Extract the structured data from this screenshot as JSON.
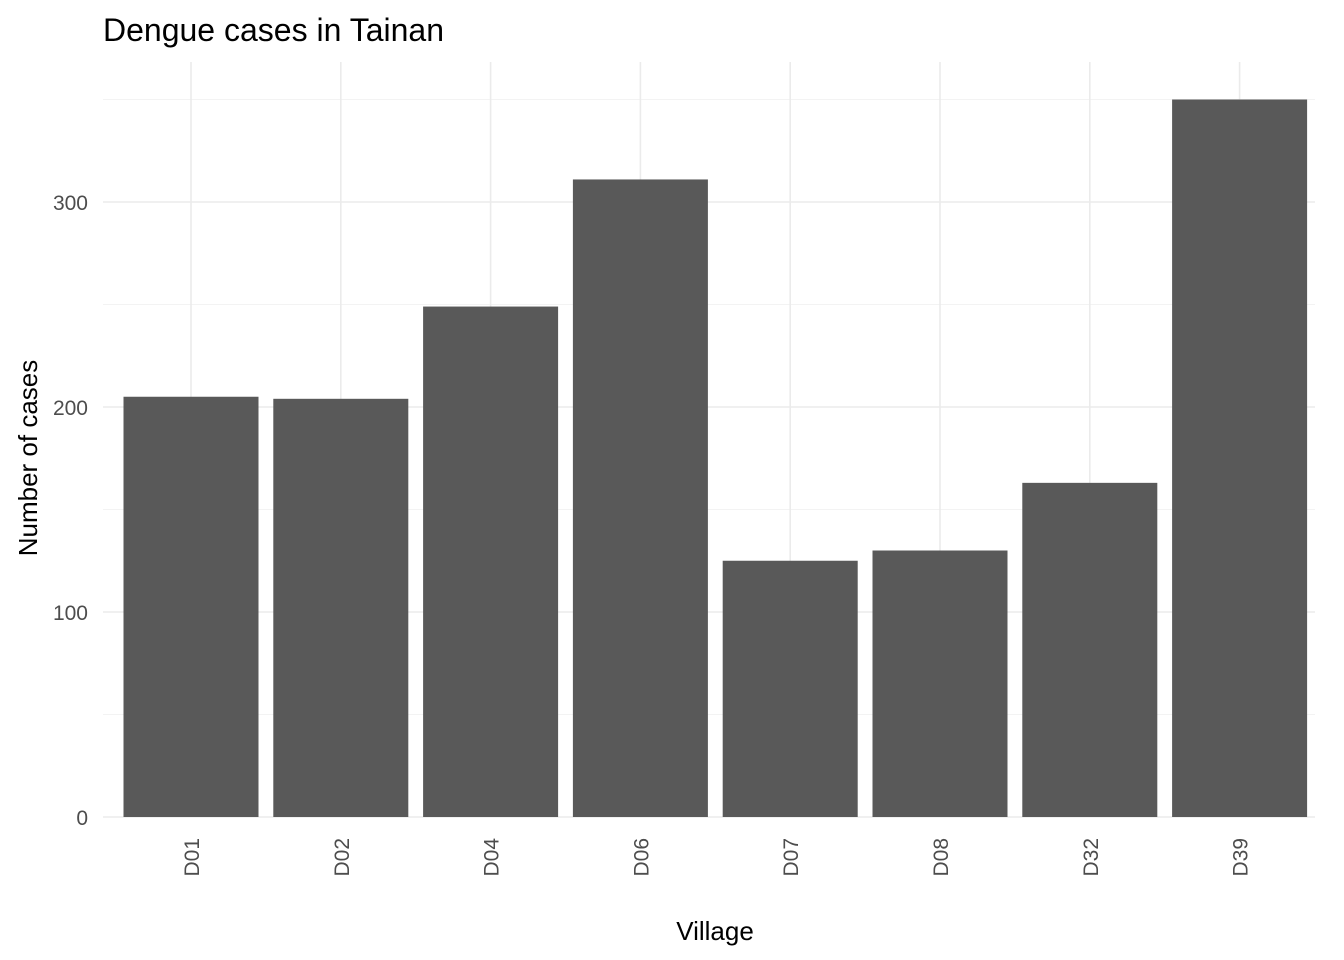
{
  "chart_data": {
    "type": "bar",
    "title": "Dengue cases in Tainan",
    "xlabel": "Village",
    "ylabel": "Number of cases",
    "categories": [
      "D01",
      "D02",
      "D04",
      "D06",
      "D07",
      "D08",
      "D32",
      "D39"
    ],
    "values": [
      205,
      204,
      249,
      311,
      125,
      130,
      163,
      350
    ],
    "ylim": [
      0,
      350
    ],
    "y_ticks": [
      0,
      100,
      200,
      300
    ],
    "grid": true,
    "bar_color": "#595959",
    "legend": "none"
  }
}
